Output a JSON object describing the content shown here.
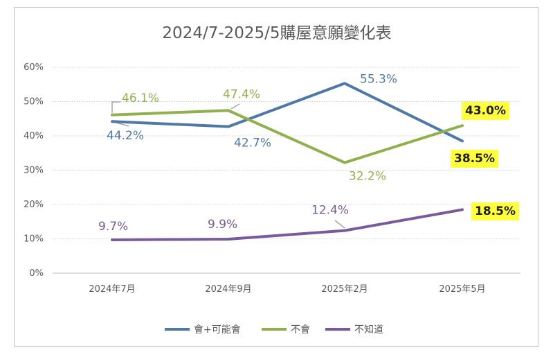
{
  "chart_data": {
    "type": "line",
    "title": "2024/7-2025/5購屋意願變化表",
    "categories": [
      "2024年7月",
      "2024年9月",
      "2025年2月",
      "2025年5月"
    ],
    "y_ticks": [
      "0%",
      "10%",
      "20%",
      "30%",
      "40%",
      "50%",
      "60%"
    ],
    "ylim": [
      0,
      60
    ],
    "grid": true,
    "legend_position": "bottom",
    "series": [
      {
        "name": "會+可能會",
        "color": "#4e79a7",
        "values": [
          44.2,
          42.7,
          55.3,
          38.5
        ],
        "labels": [
          "44.2%",
          "42.7%",
          "55.3%",
          "38.5%"
        ]
      },
      {
        "name": "不會",
        "color": "#8fb04b",
        "values": [
          46.1,
          47.4,
          32.2,
          43.0
        ],
        "labels": [
          "46.1%",
          "47.4%",
          "32.2%",
          "43.0%"
        ]
      },
      {
        "name": "不知道",
        "color": "#7a5a9a",
        "values": [
          9.7,
          9.9,
          12.4,
          18.5
        ],
        "labels": [
          "9.7%",
          "9.9%",
          "12.4%",
          "18.5%"
        ]
      }
    ],
    "highlight_color": "#ffff3c"
  }
}
